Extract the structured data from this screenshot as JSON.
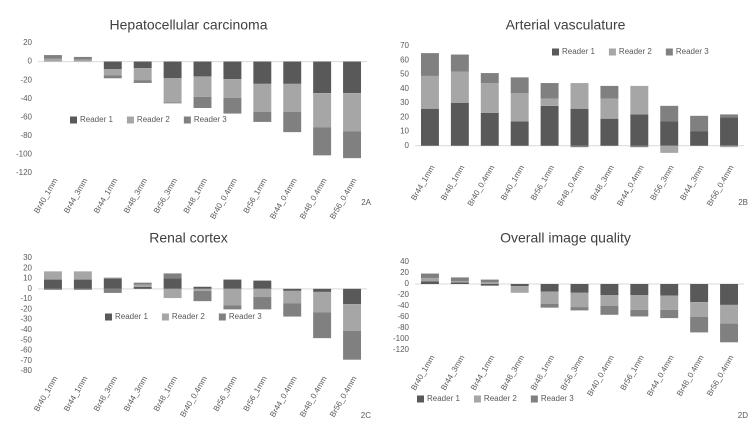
{
  "chart_data": [
    {
      "type": "bar",
      "stacked": true,
      "title": "Hepatocellular carcinoma",
      "panel_label": "2A",
      "legend": "lower left",
      "grid": false,
      "categories": [
        "Br40_1mm",
        "Br44_3mm",
        "Br44_1mm",
        "Br48_3mm",
        "Br56_3mm",
        "Br48_1mm",
        "Br40_0.4mm",
        "Br56_1mm",
        "Br44_0.4mm",
        "Br48_0.4mm",
        "Br56_0.4mm"
      ],
      "series": [
        {
          "name": "Reader 1",
          "color": "#595959",
          "values": [
            0,
            0,
            -8,
            -7,
            -18,
            -16,
            -19,
            -24,
            -24,
            -34,
            -34
          ]
        },
        {
          "name": "Reader 2",
          "color": "#a6a6a6",
          "values": [
            3,
            2,
            -7,
            -13,
            -26,
            -22,
            -20,
            -30,
            -30,
            -37,
            -41
          ]
        },
        {
          "name": "Reader 3",
          "color": "#808080",
          "values": [
            4,
            3,
            -3,
            -3,
            -1,
            -12,
            -17,
            -11,
            -22,
            -30,
            -29
          ]
        }
      ],
      "ylim": [
        -120,
        20
      ],
      "yticks": [
        20,
        0,
        -20,
        -40,
        -60,
        -80,
        -100,
        -120
      ]
    },
    {
      "type": "bar",
      "stacked": true,
      "title": "Arterial vasculature",
      "panel_label": "2B",
      "legend": "upper right",
      "grid": false,
      "categories": [
        "Br44_1mm",
        "Br48_1mm",
        "Br40_0.4mm",
        "Br40_1mm",
        "Br56_1mm",
        "Br48_0.4mm",
        "Br48_3mm",
        "Br44_0.4mm",
        "Br56_3mm",
        "Br44_3mm",
        "Br56_0.4mm"
      ],
      "series": [
        {
          "name": "Reader 1",
          "color": "#595959",
          "values": [
            26,
            30,
            23,
            17,
            28,
            26,
            19,
            22,
            17,
            10,
            20
          ]
        },
        {
          "name": "Reader 2",
          "color": "#a6a6a6",
          "values": [
            23,
            22,
            21,
            20,
            5,
            18,
            14,
            20,
            -5,
            0,
            -1
          ]
        },
        {
          "name": "Reader 3",
          "color": "#808080",
          "values": [
            16,
            12,
            7,
            11,
            11,
            -1,
            9,
            -1,
            11,
            11,
            2
          ]
        }
      ],
      "ylim": [
        -10,
        70
      ],
      "yticks": [
        70,
        60,
        50,
        40,
        30,
        20,
        10,
        0
      ]
    },
    {
      "type": "bar",
      "stacked": true,
      "title": "Renal cortex",
      "panel_label": "2C",
      "legend": "center",
      "grid": false,
      "categories": [
        "Br40_1mm",
        "Br44_1mm",
        "Br48_3mm",
        "Br44_3mm",
        "Br48_1mm",
        "Br40_0.4mm",
        "Br56_3mm",
        "Br56_1mm",
        "Br44_0.4mm",
        "Br48_0.4mm",
        "Br56_0.4mm"
      ],
      "series": [
        {
          "name": "Reader 1",
          "color": "#595959",
          "values": [
            9,
            9,
            10,
            2,
            10,
            2,
            9,
            8,
            -2,
            -3,
            -15
          ]
        },
        {
          "name": "Reader 2",
          "color": "#a6a6a6",
          "values": [
            8,
            8,
            1,
            2,
            -9,
            -2,
            -16,
            -8,
            -12,
            -20,
            -26
          ]
        },
        {
          "name": "Reader 3",
          "color": "#808080",
          "values": [
            -1,
            -1,
            -4,
            2,
            5,
            -10,
            -4,
            -12,
            -13,
            -25,
            -28
          ]
        }
      ],
      "ylim": [
        -80,
        30
      ],
      "yticks": [
        30,
        20,
        10,
        0,
        -10,
        -20,
        -30,
        -40,
        -50,
        -60,
        -70,
        -80
      ]
    },
    {
      "type": "bar",
      "stacked": true,
      "title": "Overall image quality",
      "panel_label": "2D",
      "legend": "bottom",
      "grid": false,
      "categories": [
        "Br40_1mm",
        "Br44_3mm",
        "Br44_1mm",
        "Br48_3mm",
        "Br48_1mm",
        "Br56_3mm",
        "Br40_0.4mm",
        "Br56_1mm",
        "Br44_0.4mm",
        "Br48_0.4mm",
        "Br56_0.4mm"
      ],
      "series": [
        {
          "name": "Reader 1",
          "color": "#595959",
          "values": [
            5,
            3,
            -3,
            -4,
            -14,
            -16,
            -20,
            -20,
            -21,
            -33,
            -38
          ]
        },
        {
          "name": "Reader 2",
          "color": "#a6a6a6",
          "values": [
            6,
            2,
            3,
            -12,
            -22,
            -26,
            -20,
            -27,
            -26,
            -27,
            -34
          ]
        },
        {
          "name": "Reader 3",
          "color": "#808080",
          "values": [
            8,
            7,
            5,
            0,
            -7,
            -6,
            -16,
            -12,
            -15,
            -28,
            -34
          ]
        }
      ],
      "ylim": [
        -120,
        40
      ],
      "yticks": [
        40,
        20,
        0,
        -20,
        -40,
        -60,
        -80,
        -100,
        -120
      ]
    }
  ]
}
